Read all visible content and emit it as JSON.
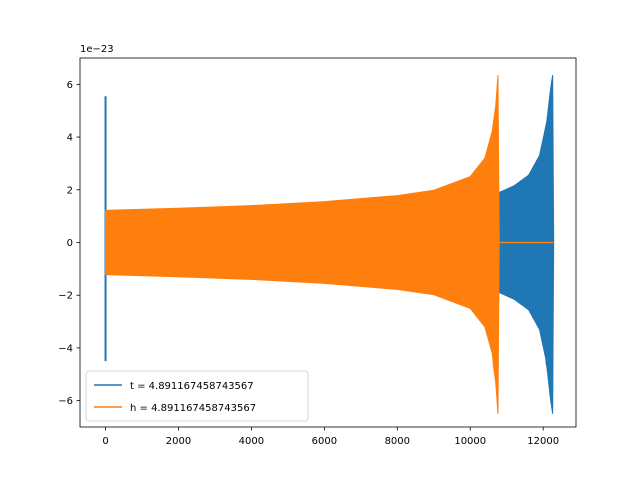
{
  "chart_data": {
    "type": "line",
    "title": "",
    "xlabel": "",
    "ylabel": "",
    "offset_text": "1e−23",
    "xlim": [
      -700,
      12900
    ],
    "ylim": [
      -7.0,
      7.0
    ],
    "xticks": [
      0,
      2000,
      4000,
      6000,
      8000,
      10000,
      12000
    ],
    "xtick_labels": [
      "0",
      "2000",
      "4000",
      "6000",
      "8000",
      "10000",
      "12000"
    ],
    "yticks": [
      -6,
      -4,
      -2,
      0,
      2,
      4,
      6
    ],
    "ytick_labels": [
      "−6",
      "−4",
      "−2",
      "0",
      "2",
      "4",
      "6"
    ],
    "grid": false,
    "legend_position": "lower-left",
    "series": [
      {
        "name": "t = 4.891167458743567",
        "color": "#1f77b4",
        "x_start": 0,
        "x_end": 12288,
        "initial_spike": {
          "x": 0,
          "max": 5.55,
          "min": -4.5
        },
        "envelope": [
          [
            0,
            1.2
          ],
          [
            2000,
            1.28
          ],
          [
            4000,
            1.36
          ],
          [
            6000,
            1.5
          ],
          [
            8000,
            1.72
          ],
          [
            9000,
            1.9
          ],
          [
            10000,
            2.3
          ],
          [
            10800,
            1.9
          ],
          [
            11200,
            2.15
          ],
          [
            11600,
            2.55
          ],
          [
            11900,
            3.3
          ],
          [
            12100,
            4.6
          ],
          [
            12200,
            5.8
          ],
          [
            12260,
            6.35
          ],
          [
            12288,
            0
          ]
        ],
        "envelope_min_peak": -6.5
      },
      {
        "name": "h = 4.891167458743567",
        "color": "#ff7f0e",
        "x_start": 0,
        "x_end": 10795,
        "envelope": [
          [
            0,
            1.22
          ],
          [
            2000,
            1.3
          ],
          [
            4000,
            1.4
          ],
          [
            6000,
            1.55
          ],
          [
            8000,
            1.78
          ],
          [
            9000,
            1.98
          ],
          [
            10000,
            2.5
          ],
          [
            10400,
            3.2
          ],
          [
            10600,
            4.2
          ],
          [
            10700,
            5.2
          ],
          [
            10760,
            6.35
          ],
          [
            10795,
            0
          ]
        ],
        "envelope_min_peak": -6.5,
        "flat_after": {
          "x_start": 10795,
          "x_end": 12288,
          "y": 0
        }
      }
    ]
  }
}
